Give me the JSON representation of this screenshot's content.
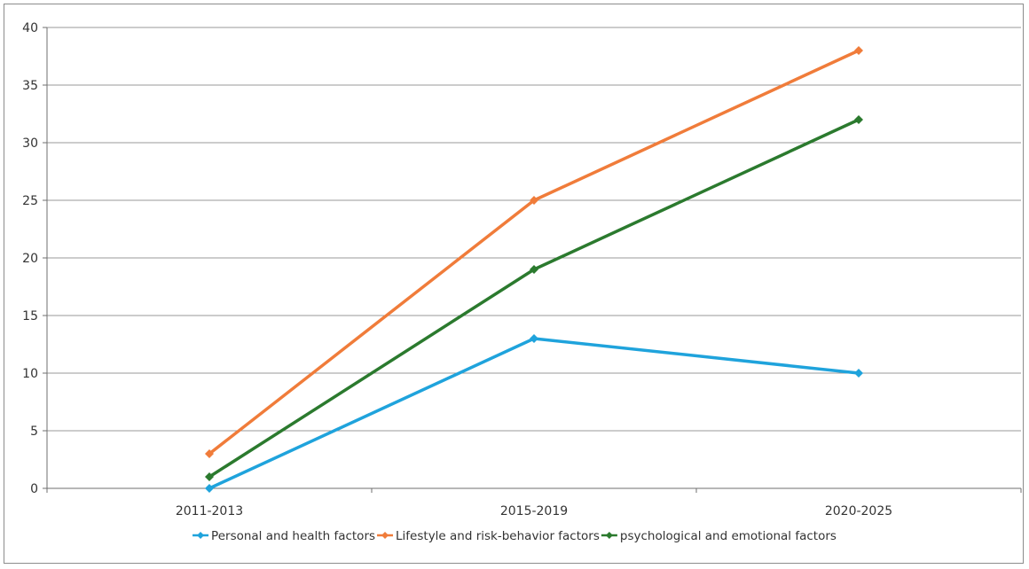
{
  "chart_data": {
    "type": "line",
    "title": "",
    "xlabel": "",
    "ylabel": "",
    "categories": [
      "2011-2013",
      "2015-2019",
      "2020-2025"
    ],
    "ylim": [
      0,
      40
    ],
    "yticks": [
      "0",
      "5",
      "10",
      "15",
      "20",
      "25",
      "30",
      "35",
      "40"
    ],
    "grid": true,
    "legend_position": "bottom",
    "series": [
      {
        "name": "Personal and health factors",
        "values": [
          0,
          13,
          10
        ],
        "color": "#1fa3dc"
      },
      {
        "name": "Lifestyle and risk-behavior factors",
        "values": [
          3,
          25,
          38
        ],
        "color": "#f07c3a"
      },
      {
        "name": "psychological and emotional factors",
        "values": [
          1,
          19,
          32
        ],
        "color": "#2b7a2e"
      }
    ]
  }
}
